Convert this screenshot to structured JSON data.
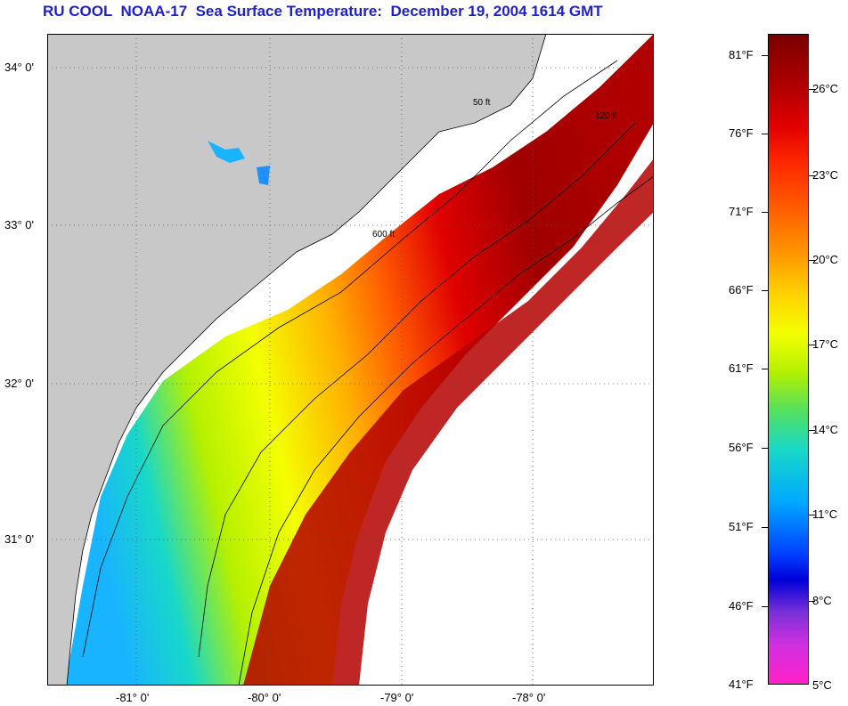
{
  "title": "RU COOL  NOAA-17  Sea Surface Temperature:  December 19, 2004 1614 GMT",
  "lat_labels": [
    "34° 0'",
    "33° 0'",
    "32° 0'",
    "31° 0'"
  ],
  "lon_labels": [
    "-81° 0'",
    "-80° 0'",
    "-79° 0'",
    "-78° 0'"
  ],
  "contour_labels": [
    "50 ft",
    "120 ft",
    "600 ft"
  ],
  "colorbar": {
    "fahrenheit": [
      "81°F",
      "76°F",
      "71°F",
      "66°F",
      "61°F",
      "56°F",
      "51°F",
      "46°F",
      "41°F"
    ],
    "celsius": [
      "26°C",
      "23°C",
      "20°C",
      "17°C",
      "14°C",
      "11°C",
      "8°C",
      "5°C"
    ],
    "colors": [
      "#7a0000",
      "#e00000",
      "#ff6600",
      "#ffd200",
      "#f4ff00",
      "#52e060",
      "#18d8c8",
      "#00a8ff",
      "#0000d8",
      "#d030e0",
      "#ff20c8"
    ]
  },
  "colors": {
    "land": "#c8c8c8",
    "cloud": "#ffffff",
    "title": "#1f1fcc"
  }
}
